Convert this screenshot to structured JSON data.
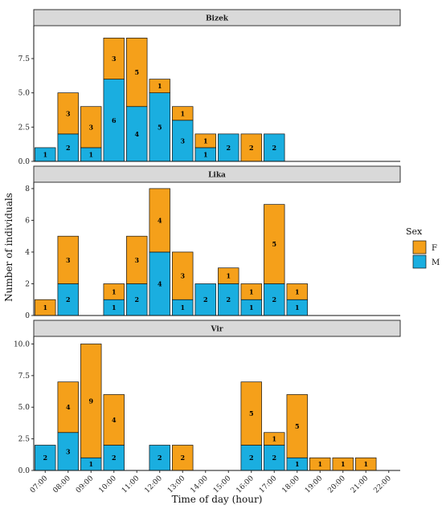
{
  "chart_data": {
    "type": "bar",
    "stacked": true,
    "xlabel": "Time of day (hour)",
    "ylabel": "Number of individuals",
    "categories": [
      "07:00",
      "08:00",
      "09:00",
      "10:00",
      "11:00",
      "12:00",
      "13:00",
      "14:00",
      "15:00",
      "16:00",
      "17:00",
      "18:00",
      "19:00",
      "20:00",
      "21:00",
      "22:00"
    ],
    "legend": {
      "title": "Sex",
      "position": "right",
      "entries": [
        {
          "key": "F",
          "label": "F",
          "color": "#f5a01a"
        },
        {
          "key": "M",
          "label": "M",
          "color": "#1aaee0"
        }
      ]
    },
    "panels": [
      {
        "title": "Bizek",
        "ylim": [
          0,
          9.9
        ],
        "yticks": [
          0,
          2.5,
          5,
          7.5
        ],
        "ytick_labels": [
          "0.0",
          "2.5",
          "5.0",
          "7.5"
        ],
        "bars": [
          {
            "hour": "07:00",
            "M": 1,
            "F": 0
          },
          {
            "hour": "08:00",
            "M": 2,
            "F": 3
          },
          {
            "hour": "09:00",
            "M": 1,
            "F": 3
          },
          {
            "hour": "10:00",
            "M": 6,
            "F": 3
          },
          {
            "hour": "11:00",
            "M": 4,
            "F": 5
          },
          {
            "hour": "12:00",
            "M": 5,
            "F": 1
          },
          {
            "hour": "13:00",
            "M": 3,
            "F": 1
          },
          {
            "hour": "14:00",
            "M": 1,
            "F": 1
          },
          {
            "hour": "15:00",
            "M": 2,
            "F": 0
          },
          {
            "hour": "16:00",
            "M": 0,
            "F": 2
          },
          {
            "hour": "17:00",
            "M": 2,
            "F": 0
          }
        ]
      },
      {
        "title": "Lika",
        "ylim": [
          0,
          8.4
        ],
        "yticks": [
          0,
          2,
          4,
          6,
          8
        ],
        "ytick_labels": [
          "0",
          "2",
          "4",
          "6",
          "8"
        ],
        "bars": [
          {
            "hour": "07:00",
            "M": 0,
            "F": 1
          },
          {
            "hour": "08:00",
            "M": 2,
            "F": 3
          },
          {
            "hour": "10:00",
            "M": 1,
            "F": 1
          },
          {
            "hour": "11:00",
            "M": 2,
            "F": 3
          },
          {
            "hour": "12:00",
            "M": 4,
            "F": 4
          },
          {
            "hour": "13:00",
            "M": 1,
            "F": 3
          },
          {
            "hour": "14:00",
            "M": 2,
            "F": 0
          },
          {
            "hour": "15:00",
            "M": 2,
            "F": 1
          },
          {
            "hour": "16:00",
            "M": 1,
            "F": 1
          },
          {
            "hour": "17:00",
            "M": 2,
            "F": 5
          },
          {
            "hour": "18:00",
            "M": 1,
            "F": 1
          }
        ]
      },
      {
        "title": "Vir",
        "ylim": [
          0,
          10.6
        ],
        "yticks": [
          0,
          2.5,
          5,
          7.5,
          10
        ],
        "ytick_labels": [
          "0.0",
          "2.5",
          "5.0",
          "7.5",
          "10.0"
        ],
        "bars": [
          {
            "hour": "07:00",
            "M": 2,
            "F": 0
          },
          {
            "hour": "08:00",
            "M": 3,
            "F": 4
          },
          {
            "hour": "09:00",
            "M": 1,
            "F": 9
          },
          {
            "hour": "10:00",
            "M": 2,
            "F": 4
          },
          {
            "hour": "12:00",
            "M": 2,
            "F": 0
          },
          {
            "hour": "13:00",
            "M": 0,
            "F": 2
          },
          {
            "hour": "16:00",
            "M": 2,
            "F": 5
          },
          {
            "hour": "17:00",
            "M": 2,
            "F": 1
          },
          {
            "hour": "18:00",
            "M": 1,
            "F": 5
          },
          {
            "hour": "19:00",
            "M": 0,
            "F": 1
          },
          {
            "hour": "20:00",
            "M": 0,
            "F": 1
          },
          {
            "hour": "21:00",
            "M": 0,
            "F": 1
          }
        ]
      }
    ]
  }
}
